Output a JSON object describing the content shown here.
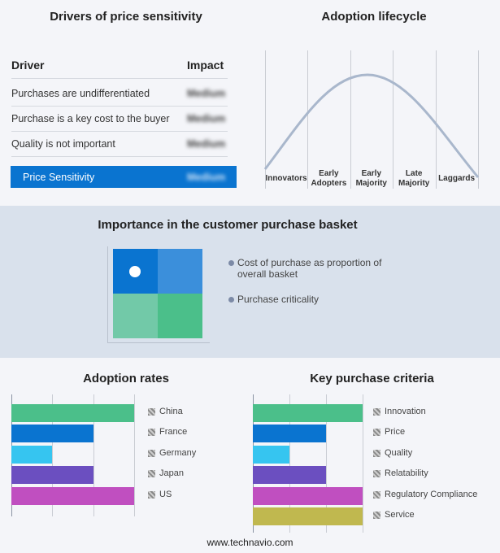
{
  "drivers": {
    "title": "Drivers of price sensitivity",
    "header": [
      "Driver",
      "Impact"
    ],
    "rows": [
      [
        "Purchases are undifferentiated",
        "Medium"
      ],
      [
        "Purchase is a key cost to the buyer",
        "Medium"
      ],
      [
        "Quality is not important",
        "Medium"
      ]
    ],
    "summary": [
      "Price Sensitivity",
      "Medium"
    ]
  },
  "lifecycle": {
    "title": "Adoption lifecycle",
    "stages": [
      "Innovators",
      "Early Adopters",
      "Early Majority",
      "Late Majority",
      "Laggards"
    ]
  },
  "basket": {
    "title": "Importance in the customer purchase basket",
    "legend": [
      "Cost of purchase as proportion of overall basket",
      "Purchase criticality"
    ]
  },
  "adoption_rates": {
    "type": "bar",
    "title": "Adoption rates",
    "xlim": [
      0,
      3
    ],
    "xticks": [
      0,
      1,
      2,
      3
    ],
    "categories": [
      "China",
      "France",
      "Germany",
      "Japan",
      "US"
    ],
    "values": [
      3,
      2,
      1,
      2,
      3
    ],
    "colors": [
      "#4bbf8a",
      "#0a74d0",
      "#36c5f0",
      "#6b4fc0",
      "#c04fc0"
    ]
  },
  "key_purchase_criteria": {
    "type": "bar",
    "title": "Key purchase criteria",
    "xlim": [
      0,
      3
    ],
    "xticks": [
      0,
      1,
      2,
      3
    ],
    "categories": [
      "Innovation",
      "Price",
      "Quality",
      "Relatability",
      "Regulatory Compliance",
      "Service"
    ],
    "values": [
      3,
      2,
      1,
      2,
      3,
      3
    ],
    "colors": [
      "#4bbf8a",
      "#0a74d0",
      "#36c5f0",
      "#6b4fc0",
      "#c04fc0",
      "#c0b84f"
    ]
  },
  "footer": "www.technavio.com"
}
